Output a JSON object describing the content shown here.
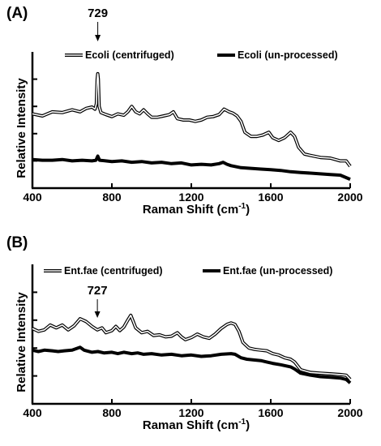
{
  "chart_data": [
    {
      "type": "line",
      "panel_label": "(A)",
      "xlabel": "Raman Shift (cm",
      "xlabel_sup": "-1",
      "xlabel_end": ")",
      "ylabel": "Relative Intensity",
      "xlim": [
        400,
        2000
      ],
      "ylim": [
        0,
        1
      ],
      "xticks": [
        "400",
        "800",
        "1200",
        "1600",
        "2000"
      ],
      "xtick_values": [
        400,
        800,
        1200,
        1600,
        2000
      ],
      "yticks": [
        0.2,
        0.4,
        0.6,
        0.8
      ],
      "legend_placement": "top",
      "annotation": {
        "text": "729",
        "x": 729
      },
      "series": [
        {
          "name": "Ecoli (centrifuged)",
          "style": "double",
          "points": [
            [
              400,
              0.545
            ],
            [
              450,
              0.53
            ],
            [
              500,
              0.56
            ],
            [
              550,
              0.555
            ],
            [
              600,
              0.575
            ],
            [
              640,
              0.56
            ],
            [
              670,
              0.585
            ],
            [
              700,
              0.595
            ],
            [
              715,
              0.58
            ],
            [
              722,
              0.62
            ],
            [
              726,
              0.8
            ],
            [
              729,
              0.84
            ],
            [
              732,
              0.8
            ],
            [
              736,
              0.6
            ],
            [
              745,
              0.555
            ],
            [
              770,
              0.54
            ],
            [
              800,
              0.525
            ],
            [
              830,
              0.545
            ],
            [
              860,
              0.535
            ],
            [
              880,
              0.56
            ],
            [
              900,
              0.6
            ],
            [
              920,
              0.56
            ],
            [
              940,
              0.545
            ],
            [
              960,
              0.575
            ],
            [
              980,
              0.545
            ],
            [
              1000,
              0.52
            ],
            [
              1030,
              0.52
            ],
            [
              1060,
              0.53
            ],
            [
              1090,
              0.54
            ],
            [
              1110,
              0.56
            ],
            [
              1130,
              0.51
            ],
            [
              1160,
              0.5
            ],
            [
              1190,
              0.5
            ],
            [
              1220,
              0.49
            ],
            [
              1250,
              0.5
            ],
            [
              1280,
              0.52
            ],
            [
              1310,
              0.525
            ],
            [
              1340,
              0.54
            ],
            [
              1365,
              0.58
            ],
            [
              1390,
              0.56
            ],
            [
              1410,
              0.55
            ],
            [
              1430,
              0.53
            ],
            [
              1450,
              0.49
            ],
            [
              1470,
              0.41
            ],
            [
              1500,
              0.38
            ],
            [
              1530,
              0.38
            ],
            [
              1560,
              0.39
            ],
            [
              1590,
              0.41
            ],
            [
              1610,
              0.37
            ],
            [
              1640,
              0.35
            ],
            [
              1670,
              0.37
            ],
            [
              1700,
              0.41
            ],
            [
              1720,
              0.38
            ],
            [
              1740,
              0.3
            ],
            [
              1770,
              0.25
            ],
            [
              1800,
              0.24
            ],
            [
              1850,
              0.225
            ],
            [
              1900,
              0.22
            ],
            [
              1950,
              0.2
            ],
            [
              1980,
              0.2
            ],
            [
              2000,
              0.16
            ]
          ]
        },
        {
          "name": "Ecoli (un-processed)",
          "style": "bold",
          "points": [
            [
              400,
              0.21
            ],
            [
              450,
              0.205
            ],
            [
              500,
              0.205
            ],
            [
              550,
              0.21
            ],
            [
              600,
              0.2
            ],
            [
              650,
              0.205
            ],
            [
              700,
              0.2
            ],
            [
              720,
              0.205
            ],
            [
              729,
              0.235
            ],
            [
              738,
              0.205
            ],
            [
              800,
              0.195
            ],
            [
              850,
              0.2
            ],
            [
              900,
              0.19
            ],
            [
              950,
              0.195
            ],
            [
              1000,
              0.185
            ],
            [
              1050,
              0.19
            ],
            [
              1100,
              0.18
            ],
            [
              1150,
              0.185
            ],
            [
              1200,
              0.17
            ],
            [
              1250,
              0.175
            ],
            [
              1300,
              0.17
            ],
            [
              1340,
              0.18
            ],
            [
              1360,
              0.19
            ],
            [
              1380,
              0.175
            ],
            [
              1400,
              0.165
            ],
            [
              1450,
              0.15
            ],
            [
              1500,
              0.145
            ],
            [
              1550,
              0.14
            ],
            [
              1600,
              0.135
            ],
            [
              1650,
              0.13
            ],
            [
              1700,
              0.12
            ],
            [
              1750,
              0.115
            ],
            [
              1800,
              0.11
            ],
            [
              1850,
              0.105
            ],
            [
              1900,
              0.1
            ],
            [
              1950,
              0.095
            ],
            [
              2000,
              0.065
            ]
          ]
        }
      ]
    },
    {
      "type": "line",
      "panel_label": "(B)",
      "xlabel": "Raman Shift (cm",
      "xlabel_sup": "-1",
      "xlabel_end": ")",
      "ylabel": "Relative Intensity",
      "xlim": [
        400,
        2000
      ],
      "ylim": [
        0,
        1
      ],
      "xticks": [
        "400",
        "800",
        "1200",
        "1600",
        "2000"
      ],
      "xtick_values": [
        400,
        800,
        1200,
        1600,
        2000
      ],
      "yticks": [
        0.2,
        0.4,
        0.6,
        0.8
      ],
      "legend_placement": "top",
      "annotation": {
        "text": "727",
        "x": 727
      },
      "series": [
        {
          "name": "Ent.fae (centrifuged)",
          "style": "double",
          "points": [
            [
              400,
              0.54
            ],
            [
              430,
              0.52
            ],
            [
              460,
              0.53
            ],
            [
              490,
              0.565
            ],
            [
              520,
              0.545
            ],
            [
              550,
              0.565
            ],
            [
              580,
              0.53
            ],
            [
              610,
              0.56
            ],
            [
              640,
              0.61
            ],
            [
              670,
              0.59
            ],
            [
              700,
              0.555
            ],
            [
              727,
              0.53
            ],
            [
              750,
              0.545
            ],
            [
              770,
              0.51
            ],
            [
              800,
              0.525
            ],
            [
              820,
              0.555
            ],
            [
              840,
              0.525
            ],
            [
              860,
              0.55
            ],
            [
              880,
              0.6
            ],
            [
              895,
              0.635
            ],
            [
              905,
              0.6
            ],
            [
              920,
              0.545
            ],
            [
              950,
              0.51
            ],
            [
              980,
              0.52
            ],
            [
              1010,
              0.49
            ],
            [
              1040,
              0.495
            ],
            [
              1070,
              0.48
            ],
            [
              1100,
              0.485
            ],
            [
              1130,
              0.51
            ],
            [
              1150,
              0.48
            ],
            [
              1170,
              0.46
            ],
            [
              1200,
              0.475
            ],
            [
              1230,
              0.5
            ],
            [
              1260,
              0.48
            ],
            [
              1290,
              0.47
            ],
            [
              1320,
              0.5
            ],
            [
              1350,
              0.54
            ],
            [
              1380,
              0.57
            ],
            [
              1400,
              0.58
            ],
            [
              1420,
              0.57
            ],
            [
              1440,
              0.52
            ],
            [
              1460,
              0.44
            ],
            [
              1490,
              0.4
            ],
            [
              1520,
              0.39
            ],
            [
              1550,
              0.385
            ],
            [
              1580,
              0.38
            ],
            [
              1610,
              0.36
            ],
            [
              1640,
              0.35
            ],
            [
              1670,
              0.33
            ],
            [
              1700,
              0.32
            ],
            [
              1720,
              0.3
            ],
            [
              1750,
              0.245
            ],
            [
              1800,
              0.225
            ],
            [
              1850,
              0.22
            ],
            [
              1900,
              0.215
            ],
            [
              1950,
              0.21
            ],
            [
              1980,
              0.205
            ],
            [
              2000,
              0.175
            ]
          ]
        },
        {
          "name": "Ent.fae (un-processed)",
          "style": "bold",
          "points": [
            [
              400,
              0.385
            ],
            [
              430,
              0.375
            ],
            [
              460,
              0.385
            ],
            [
              500,
              0.38
            ],
            [
              530,
              0.375
            ],
            [
              560,
              0.38
            ],
            [
              600,
              0.385
            ],
            [
              640,
              0.405
            ],
            [
              660,
              0.385
            ],
            [
              700,
              0.37
            ],
            [
              730,
              0.375
            ],
            [
              760,
              0.365
            ],
            [
              800,
              0.37
            ],
            [
              830,
              0.36
            ],
            [
              860,
              0.37
            ],
            [
              900,
              0.36
            ],
            [
              930,
              0.365
            ],
            [
              960,
              0.355
            ],
            [
              1000,
              0.36
            ],
            [
              1050,
              0.35
            ],
            [
              1100,
              0.355
            ],
            [
              1150,
              0.345
            ],
            [
              1200,
              0.35
            ],
            [
              1250,
              0.34
            ],
            [
              1300,
              0.345
            ],
            [
              1350,
              0.355
            ],
            [
              1400,
              0.36
            ],
            [
              1420,
              0.355
            ],
            [
              1450,
              0.33
            ],
            [
              1480,
              0.32
            ],
            [
              1510,
              0.315
            ],
            [
              1550,
              0.31
            ],
            [
              1580,
              0.3
            ],
            [
              1610,
              0.29
            ],
            [
              1650,
              0.28
            ],
            [
              1700,
              0.265
            ],
            [
              1720,
              0.25
            ],
            [
              1750,
              0.22
            ],
            [
              1800,
              0.205
            ],
            [
              1850,
              0.195
            ],
            [
              1900,
              0.19
            ],
            [
              1950,
              0.185
            ],
            [
              1980,
              0.175
            ],
            [
              2000,
              0.15
            ]
          ]
        }
      ]
    }
  ]
}
